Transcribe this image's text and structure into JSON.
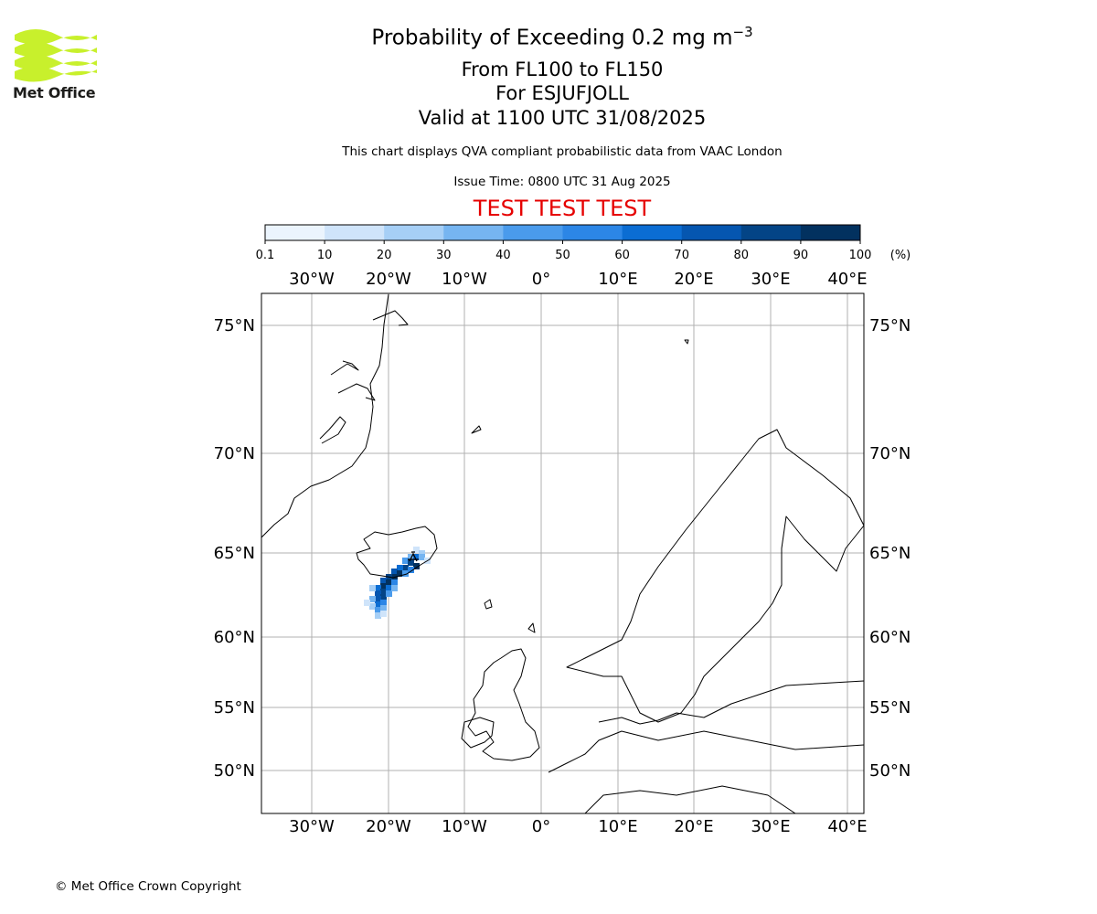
{
  "logo": {
    "brand": "Met Office",
    "brand_color": "#c8f02c"
  },
  "header": {
    "title_prefix": "Probability of Exceeding 0.2 mg m",
    "title_exponent": "−3",
    "level_range": "From FL100 to FL150",
    "volcano": "For ESJUFJOLL",
    "valid_time": "Valid at 1100 UTC 31/08/2025",
    "description": "This chart displays QVA compliant probabilistic data from VAAC London",
    "issue_time": "Issue Time: 0800 UTC 31 Aug 2025",
    "test_banner": "TEST TEST TEST",
    "test_color": "#e60000"
  },
  "colorbar": {
    "ticks": [
      "0.1",
      "10",
      "20",
      "30",
      "40",
      "50",
      "60",
      "70",
      "80",
      "90",
      "100"
    ],
    "unit": "(%)",
    "colors": [
      "#ebf4fd",
      "#cfe4fa",
      "#a6cff6",
      "#76b5f1",
      "#4a9bec",
      "#2c86e6",
      "#0b6dd3",
      "#0556b0",
      "#034486",
      "#02315f"
    ]
  },
  "map": {
    "lon_labels": [
      "30°W",
      "20°W",
      "10°W",
      "0°",
      "10°E",
      "20°E",
      "30°E",
      "40°E"
    ],
    "lat_labels": [
      "75°N",
      "70°N",
      "65°N",
      "60°N",
      "55°N",
      "50°N"
    ],
    "gridlines": true
  },
  "footer": {
    "copyright": "© Met Office Crown Copyright"
  }
}
